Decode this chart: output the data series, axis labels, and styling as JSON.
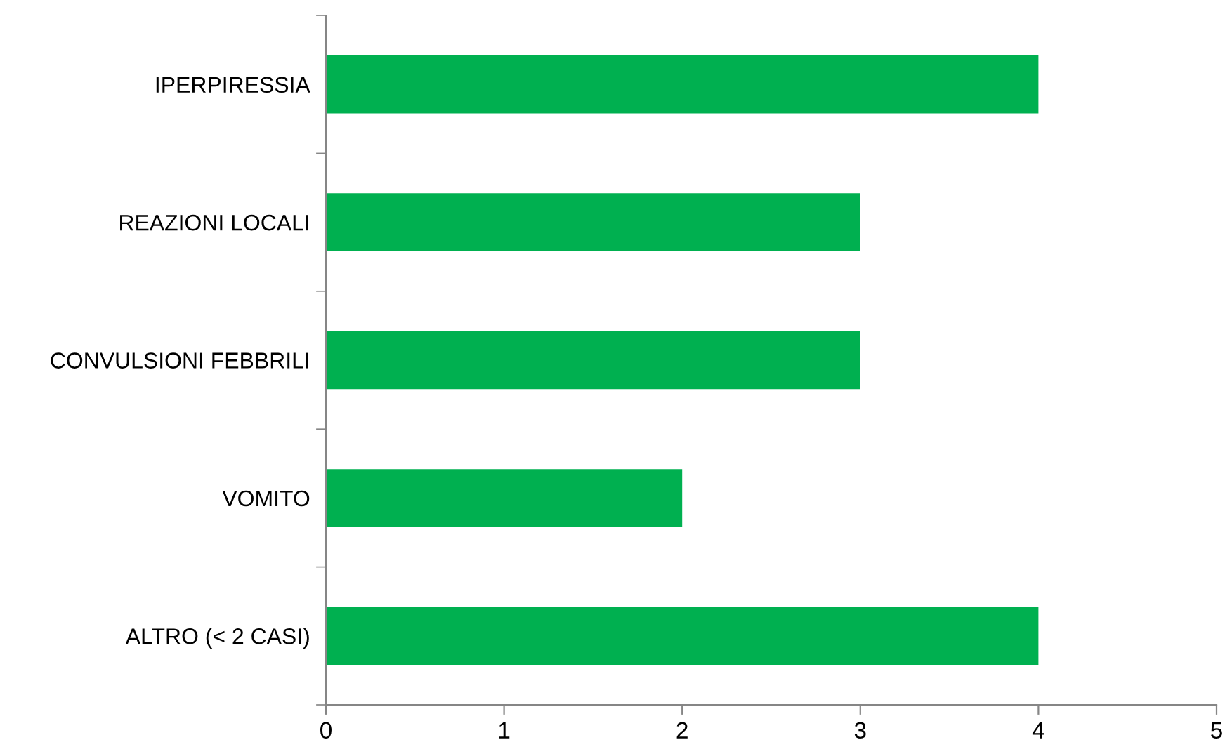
{
  "chart_data": {
    "type": "bar",
    "orientation": "horizontal",
    "categories": [
      "IPERPIRESSIA",
      "REAZIONI LOCALI",
      "CONVULSIONI FEBBRILI",
      "VOMITO",
      "ALTRO (< 2 CASI)"
    ],
    "values": [
      4,
      3,
      3,
      2,
      4
    ],
    "color": "#00b050",
    "xlim": [
      0,
      5
    ],
    "xticks": [
      0,
      1,
      2,
      3,
      4,
      5
    ],
    "grid": false,
    "legend": false
  }
}
